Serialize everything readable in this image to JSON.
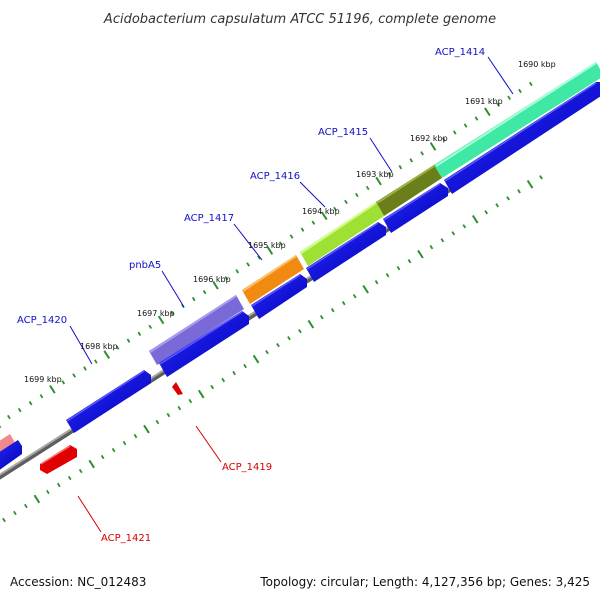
{
  "title": "Acidobacterium capsulatum ATCC 51196, complete genome",
  "footer": {
    "accession": "Accession: NC_012483",
    "summary": "Topology: circular; Length: 4,127,356 bp; Genes: 3,425"
  },
  "colors": {
    "forward_label": "#1010c8",
    "reverse_label": "#d40000",
    "cds": "#0000e6",
    "tick": "#2f8f2f",
    "backbone": "#8c8c8c"
  },
  "kbp_ticks": [
    "1690 kbp",
    "1691 kbp",
    "1692 kbp",
    "1693 kbp",
    "1694 kbp",
    "1695 kbp",
    "1696 kbp",
    "1697 kbp",
    "1698 kbp",
    "1699 kbp"
  ],
  "gene_labels": [
    {
      "name": "ACP_1414",
      "strand": "forward"
    },
    {
      "name": "ACP_1415",
      "strand": "forward"
    },
    {
      "name": "ACP_1416",
      "strand": "forward"
    },
    {
      "name": "ACP_1417",
      "strand": "forward"
    },
    {
      "name": "pnbA5",
      "strand": "forward"
    },
    {
      "name": "ACP_1420",
      "strand": "forward"
    },
    {
      "name": "ACP_1419",
      "strand": "reverse"
    },
    {
      "name": "ACP_1421",
      "strand": "reverse"
    }
  ],
  "feature_colors": {
    "ACP_1414": "#3fe8a4",
    "ACP_1415": "#6a7f1a",
    "ACP_1416": "#9ee033",
    "ACP_1417": "#f08a10",
    "pnbA5": "#7a6ad8",
    "edge_feature": "#f08a8a",
    "reverse_feature": "#e00000"
  }
}
